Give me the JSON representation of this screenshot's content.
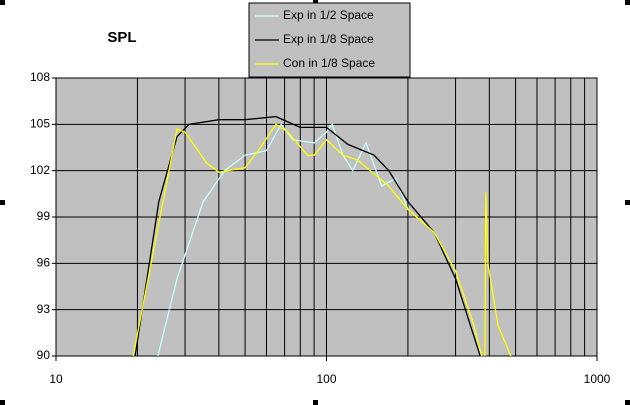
{
  "chart_data": {
    "type": "line",
    "title": "SPL",
    "xlim": [
      10,
      1000
    ],
    "xticks": [
      10,
      100,
      1000
    ],
    "log_x": true,
    "ylim": [
      90,
      108
    ],
    "yticks": [
      90,
      93,
      96,
      99,
      102,
      105,
      108
    ],
    "grid": true,
    "series": [
      {
        "name": "Exp in 1/2 Space",
        "color": "#c8ffff",
        "x": [
          23.8,
          28,
          35,
          42,
          50,
          60,
          68,
          75,
          90,
          100,
          105,
          115,
          125,
          140,
          160,
          180,
          200,
          250,
          300,
          350,
          375
        ],
        "values": [
          90,
          95,
          100,
          102,
          103,
          103.3,
          105,
          104,
          103.8,
          104.5,
          105,
          103,
          102,
          103.8,
          101,
          101.5,
          99.5,
          98,
          95.5,
          92,
          90
        ]
      },
      {
        "name": "Exp in 1/8 Space",
        "color": "#000000",
        "x": [
          19.6,
          24,
          28,
          31,
          40,
          50,
          65,
          80,
          100,
          120,
          150,
          170,
          200,
          250,
          300,
          340,
          370
        ],
        "values": [
          90,
          100,
          104.2,
          105,
          105.3,
          105.3,
          105.5,
          104.8,
          104.8,
          103.7,
          103,
          102,
          100,
          98,
          95,
          92,
          90
        ]
      },
      {
        "name": "Con in 1/8 Space",
        "color": "#ffff00",
        "x": [
          19.3,
          28,
          30,
          36,
          40,
          50,
          57,
          65,
          72,
          85,
          90,
          100,
          115,
          130,
          170,
          200,
          250,
          300,
          350,
          375,
          null,
          385,
          388,
          395,
          430,
          480
        ],
        "values": [
          90,
          104.7,
          104.5,
          102.5,
          101.9,
          102.2,
          103.5,
          105,
          104.5,
          103,
          103,
          104,
          103,
          102.7,
          101,
          99.5,
          98,
          95.5,
          92,
          90,
          null,
          90,
          100.6,
          96,
          92,
          90
        ]
      }
    ]
  }
}
